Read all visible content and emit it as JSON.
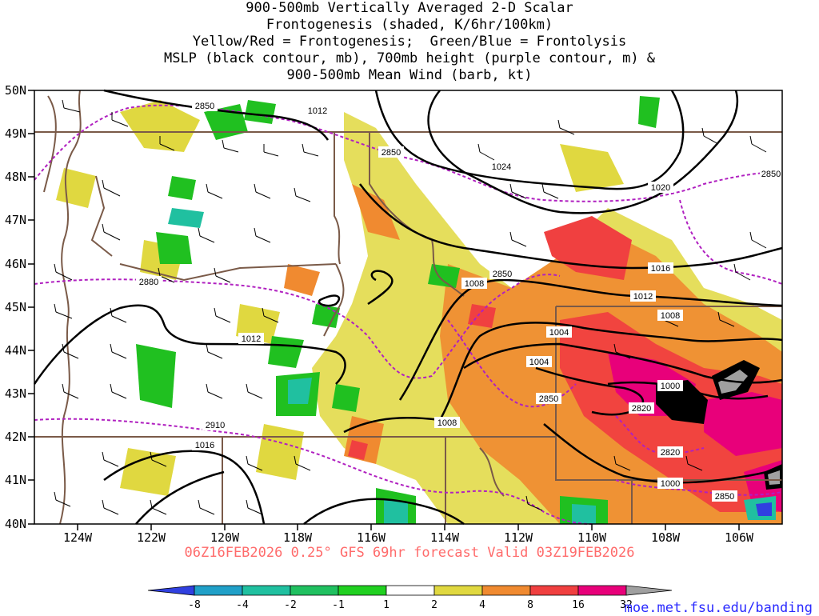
{
  "header": {
    "title_lines": [
      "900-500mb Vertically Averaged 2-D Scalar",
      "Frontogenesis (shaded, K/6hr/100km)",
      "Yellow/Red = Frontogenesis;  Green/Blue = Frontolysis",
      "MSLP (black contour, mb), 700mb height (purple contour, m) &",
      "900-500mb Mean Wind (barb, kt)"
    ]
  },
  "map": {
    "lat_labels": [
      "50N",
      "49N",
      "48N",
      "47N",
      "46N",
      "45N",
      "44N",
      "43N",
      "42N",
      "41N",
      "40N"
    ],
    "lon_labels": [
      "124W",
      "122W",
      "120W",
      "118W",
      "116W",
      "114W",
      "112W",
      "110W",
      "108W",
      "106W"
    ],
    "lat_range": [
      40,
      50
    ],
    "lon_range": [
      -125,
      -105
    ],
    "mslp_labels": [
      "1012",
      "1024",
      "1020",
      "1016",
      "1012",
      "1008",
      "1008",
      "1004",
      "1004",
      "1000",
      "1008",
      "1016",
      "1012",
      "1000"
    ],
    "height_labels": [
      "2850",
      "2850",
      "2850",
      "2850",
      "2880",
      "2850",
      "2820",
      "2820",
      "2910",
      "2850"
    ],
    "colors": {
      "mslp": "#000000",
      "height": "#b020c0",
      "borders": "#7a5a48",
      "genesis_yellow": "#e0d840",
      "genesis_orange": "#f08a30",
      "genesis_red": "#f04040",
      "genesis_magenta": "#e8007a",
      "genesis_black": "#000000",
      "lysis_green": "#20c020",
      "lysis_teal": "#20c0a0"
    }
  },
  "footer": {
    "run_info": "06Z16FEB2026 0.25° GFS 69hr forecast Valid 03Z19FEB2026"
  },
  "colorbar": {
    "labels": [
      "-8",
      "-4",
      "-2",
      "-1",
      "1",
      "2",
      "4",
      "8",
      "16",
      "32"
    ],
    "colors": [
      "#3040e0",
      "#20a0c8",
      "#20c0a0",
      "#20c060",
      "#20d020",
      "#ffffff",
      "#e0d840",
      "#f08a30",
      "#f04040",
      "#e8007a",
      "#000000",
      "#a0a0a0"
    ]
  },
  "credit": "moe.met.fsu.edu/banding"
}
